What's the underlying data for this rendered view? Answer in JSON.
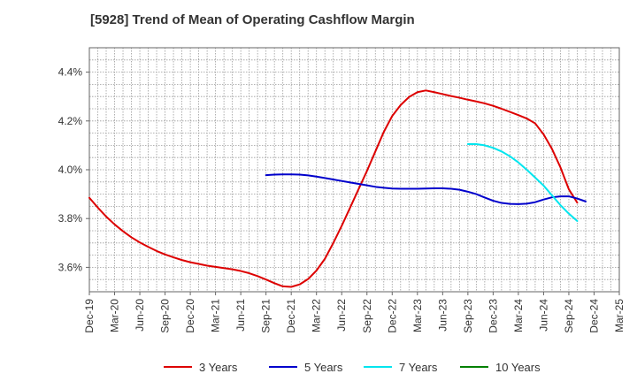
{
  "chart_data": {
    "type": "line",
    "title": "[5928]  Trend of Mean of Operating Cashflow Margin",
    "xlabel": "",
    "ylabel": "",
    "y_unit": "%",
    "ylim": [
      3.5,
      4.5
    ],
    "y_ticks": [
      3.6,
      3.8,
      4.0,
      4.2,
      4.4
    ],
    "y_tick_labels": [
      "3.6%",
      "3.8%",
      "4.0%",
      "4.2%",
      "4.4%"
    ],
    "x_tick_labels": [
      "Dec-19",
      "Mar-20",
      "Jun-20",
      "Sep-20",
      "Dec-20",
      "Mar-21",
      "Jun-21",
      "Sep-21",
      "Dec-21",
      "Mar-22",
      "Jun-22",
      "Sep-22",
      "Dec-22",
      "Mar-23",
      "Jun-23",
      "Sep-23",
      "Dec-23",
      "Mar-24",
      "Jun-24",
      "Sep-24",
      "Dec-24",
      "Mar-25"
    ],
    "grid": true,
    "legend_position": "bottom",
    "series": [
      {
        "name": "3 Years",
        "color": "#dd0000",
        "points": [
          [
            0,
            3.885
          ],
          [
            1,
            3.845
          ],
          [
            2,
            3.808
          ],
          [
            3,
            3.776
          ],
          [
            4,
            3.748
          ],
          [
            5,
            3.723
          ],
          [
            6,
            3.702
          ],
          [
            7,
            3.684
          ],
          [
            8,
            3.667
          ],
          [
            9,
            3.653
          ],
          [
            10,
            3.641
          ],
          [
            11,
            3.63
          ],
          [
            12,
            3.621
          ],
          [
            13,
            3.614
          ],
          [
            14,
            3.607
          ],
          [
            15,
            3.602
          ],
          [
            16,
            3.597
          ],
          [
            17,
            3.592
          ],
          [
            18,
            3.585
          ],
          [
            19,
            3.576
          ],
          [
            20,
            3.564
          ],
          [
            21,
            3.55
          ],
          [
            22,
            3.535
          ],
          [
            23,
            3.522
          ],
          [
            24,
            3.52
          ],
          [
            25,
            3.53
          ],
          [
            26,
            3.552
          ],
          [
            27,
            3.587
          ],
          [
            28,
            3.635
          ],
          [
            29,
            3.7
          ],
          [
            30,
            3.77
          ],
          [
            31,
            3.845
          ],
          [
            32,
            3.92
          ],
          [
            33,
            3.995
          ],
          [
            34,
            4.075
          ],
          [
            35,
            4.155
          ],
          [
            36,
            4.22
          ],
          [
            37,
            4.265
          ],
          [
            38,
            4.298
          ],
          [
            39,
            4.318
          ],
          [
            40,
            4.325
          ],
          [
            41,
            4.318
          ],
          [
            42,
            4.31
          ],
          [
            43,
            4.302
          ],
          [
            44,
            4.295
          ],
          [
            45,
            4.287
          ],
          [
            46,
            4.28
          ],
          [
            47,
            4.272
          ],
          [
            48,
            4.262
          ],
          [
            49,
            4.25
          ],
          [
            50,
            4.237
          ],
          [
            51,
            4.224
          ],
          [
            52,
            4.21
          ],
          [
            53,
            4.19
          ],
          [
            54,
            4.145
          ],
          [
            55,
            4.085
          ],
          [
            56,
            4.01
          ],
          [
            57,
            3.92
          ],
          [
            58,
            3.865
          ]
        ]
      },
      {
        "name": "5 Years",
        "color": "#0000cc",
        "points": [
          [
            21,
            3.978
          ],
          [
            22,
            3.98
          ],
          [
            23,
            3.981
          ],
          [
            24,
            3.981
          ],
          [
            25,
            3.98
          ],
          [
            26,
            3.977
          ],
          [
            27,
            3.972
          ],
          [
            28,
            3.966
          ],
          [
            29,
            3.96
          ],
          [
            30,
            3.954
          ],
          [
            31,
            3.948
          ],
          [
            32,
            3.942
          ],
          [
            33,
            3.936
          ],
          [
            34,
            3.93
          ],
          [
            35,
            3.926
          ],
          [
            36,
            3.923
          ],
          [
            37,
            3.922
          ],
          [
            38,
            3.922
          ],
          [
            39,
            3.922
          ],
          [
            40,
            3.923
          ],
          [
            41,
            3.924
          ],
          [
            42,
            3.924
          ],
          [
            43,
            3.922
          ],
          [
            44,
            3.918
          ],
          [
            45,
            3.91
          ],
          [
            46,
            3.9
          ],
          [
            47,
            3.886
          ],
          [
            48,
            3.873
          ],
          [
            49,
            3.864
          ],
          [
            50,
            3.86
          ],
          [
            51,
            3.859
          ],
          [
            52,
            3.861
          ],
          [
            53,
            3.867
          ],
          [
            54,
            3.878
          ],
          [
            55,
            3.887
          ],
          [
            56,
            3.891
          ],
          [
            57,
            3.891
          ],
          [
            58,
            3.882
          ],
          [
            59,
            3.87
          ]
        ]
      },
      {
        "name": "7 Years",
        "color": "#00e5ee",
        "points": [
          [
            45,
            4.105
          ],
          [
            46,
            4.105
          ],
          [
            47,
            4.1
          ],
          [
            48,
            4.09
          ],
          [
            49,
            4.075
          ],
          [
            50,
            4.055
          ],
          [
            51,
            4.03
          ],
          [
            52,
            4.0
          ],
          [
            53,
            3.968
          ],
          [
            54,
            3.935
          ],
          [
            55,
            3.895
          ],
          [
            56,
            3.855
          ],
          [
            57,
            3.82
          ],
          [
            58,
            3.79
          ]
        ]
      },
      {
        "name": "10 Years",
        "color": "#008000",
        "points": []
      }
    ]
  }
}
